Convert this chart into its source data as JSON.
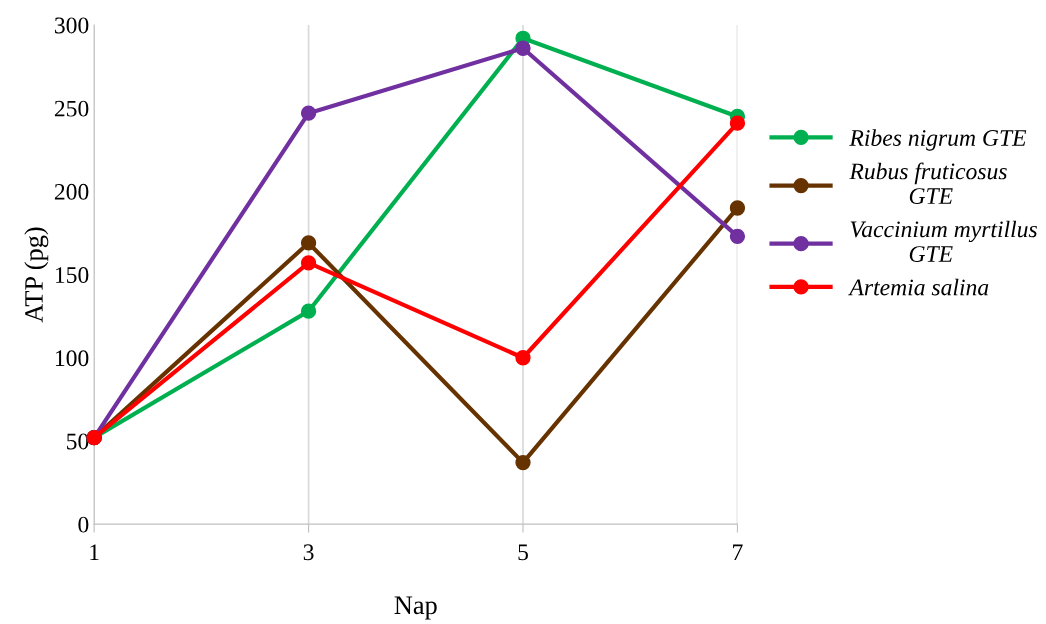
{
  "chart_data": {
    "type": "line",
    "xlabel": "Nap",
    "ylabel": "ATP (pg)",
    "x": [
      1,
      3,
      5,
      7
    ],
    "series": [
      {
        "name": "Ribes nigrum GTE",
        "color": "#00b050",
        "values": [
          52,
          128,
          292,
          245
        ]
      },
      {
        "name": "Rubus fruticosus GTE",
        "color": "#663300",
        "values": [
          52,
          169,
          37,
          190
        ]
      },
      {
        "name": "Vaccinium myrtillus GTE",
        "color": "#7030a0",
        "values": [
          52,
          247,
          286,
          173
        ]
      },
      {
        "name": "Artemia salina",
        "color": "#ff0000",
        "values": [
          52,
          157,
          100,
          241
        ]
      }
    ],
    "xlim": [
      1,
      7
    ],
    "xticks": [
      1,
      3,
      5,
      7
    ],
    "ylim": [
      0,
      300
    ],
    "yticks": [
      0,
      50,
      100,
      150,
      200,
      250,
      300
    ],
    "grid": "x",
    "legend": "right",
    "marker": "circle",
    "line_style": "solid"
  }
}
